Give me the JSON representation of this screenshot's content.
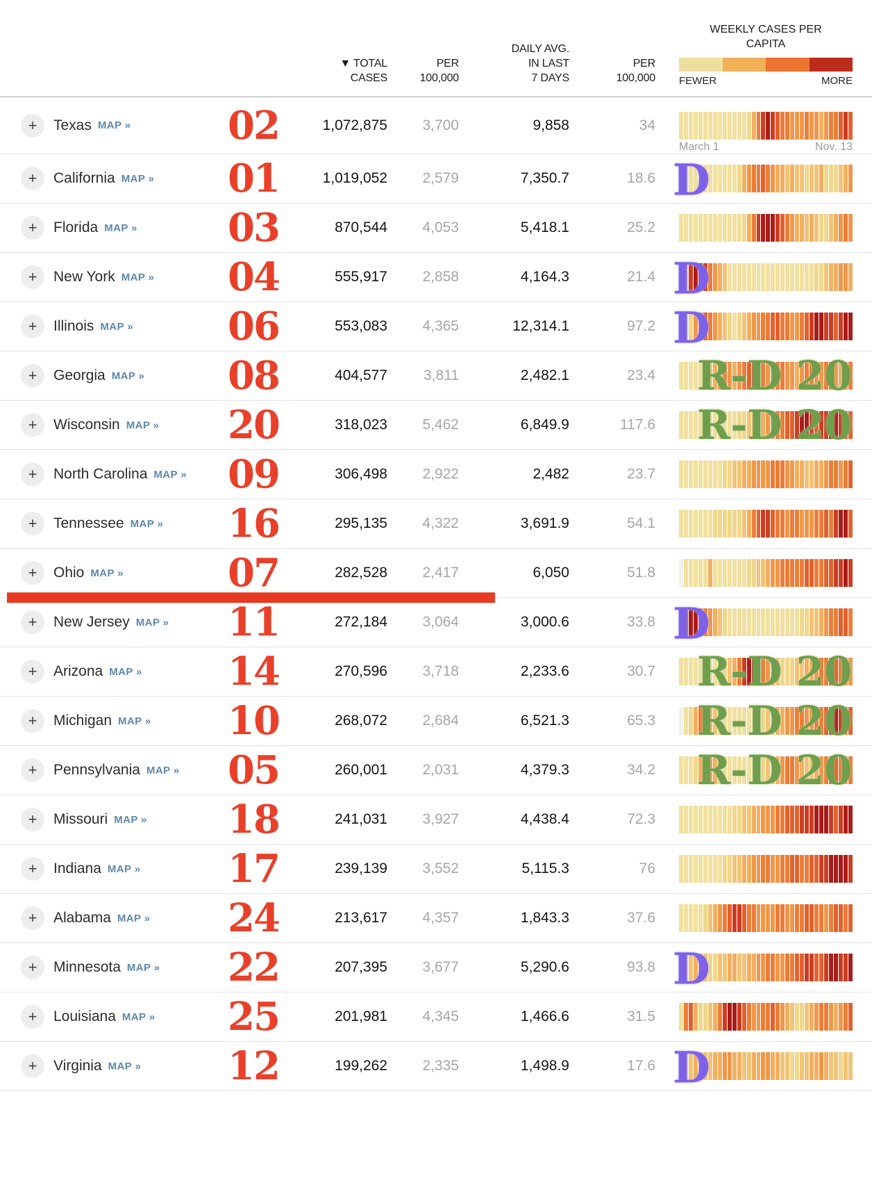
{
  "ui": {
    "plus": "+",
    "map_link": "MAP »",
    "columns": {
      "total": [
        "▼ TOTAL",
        "CASES"
      ],
      "per100k_1": [
        "PER",
        "100,000"
      ],
      "daily": [
        "DAILY AVG.",
        "IN LAST",
        "7 DAYS"
      ],
      "per100k_2": [
        "PER",
        "100,000"
      ]
    },
    "legend": {
      "title_line1": "WEEKLY CASES PER",
      "title_line2": "CAPITA",
      "fewer": "FEWER",
      "more": "MORE",
      "colors": [
        "#efdf9f",
        "#f2b159",
        "#ed7331",
        "#bc2b1c"
      ]
    },
    "timeline": {
      "start": "March 1",
      "end": "Nov. 13"
    }
  },
  "annotations": {
    "d_label": "D",
    "rd_label": "R-D 20",
    "colors": {
      "rank_red": "#e8402a",
      "underline_red": "#e73a22",
      "d_purple": "#7d62e8",
      "rd_green": "#6f9e4c"
    }
  },
  "palette": {
    "w": "#f2f0ea",
    "a": "#f1e0a0",
    "b": "#f0d78c",
    "c": "#f2c377",
    "d": "#f2af60",
    "e": "#ef974b",
    "f": "#ec7d38",
    "g": "#e2612d",
    "h": "#cb3d23",
    "i": "#a81c19"
  },
  "rows": [
    {
      "state": "Texas",
      "rank": "02",
      "total": "1,072,875",
      "per100k": "3,700",
      "daily_avg": "9,858",
      "daily_per100k": "34",
      "overlay": null,
      "strip": "aaaaaaaaaaaaaabdfhihgffeeefeedeffghg",
      "show_timeline_labels": true,
      "underline_after": false
    },
    {
      "state": "California",
      "rank": "01",
      "total": "1,019,052",
      "per100k": "2,579",
      "daily_avg": "7,350.7",
      "daily_per100k": "18.6",
      "overlay": "D",
      "strip": "aaaaaaaaaaaabdeffgfeddcdccbccdbbbcde",
      "show_timeline_labels": false,
      "underline_after": false
    },
    {
      "state": "Florida",
      "rank": "03",
      "total": "870,544",
      "per100k": "4,053",
      "daily_avg": "5,418.1",
      "daily_per100k": "25.2",
      "overlay": null,
      "strip": "aaaaaaaaaaaaabdfhiiihgfeddcdcbbcdefe",
      "show_timeline_labels": false,
      "underline_after": false
    },
    {
      "state": "New York",
      "rank": "04",
      "total": "555,917",
      "per100k": "2,858",
      "daily_avg": "4,164.3",
      "daily_per100k": "21.4",
      "overlay": "D",
      "strip": "aahiihfedcaaaaaaaaaaaaaaaaaabbcddeed",
      "show_timeline_labels": false,
      "underline_after": false
    },
    {
      "state": "Illinois",
      "rank": "06",
      "total": "553,083",
      "per100k": "4,365",
      "daily_avg": "12,314.1",
      "daily_per100k": "97.2",
      "overlay": "D",
      "strip": "aabefgfedcbabcdeeffggffeefghiihhghii",
      "show_timeline_labels": false,
      "underline_after": false
    },
    {
      "state": "Georgia",
      "rank": "08",
      "total": "404,577",
      "per100k": "3,811",
      "daily_avg": "2,482.1",
      "daily_per100k": "23.4",
      "overlay": "RD",
      "strip": "aaaaabcdefedefghgfeeffeedeffeeffedef",
      "show_timeline_labels": false,
      "underline_after": false
    },
    {
      "state": "Wisconsin",
      "rank": "20",
      "total": "318,023",
      "per100k": "5,462",
      "daily_avg": "6,849.9",
      "daily_per100k": "117.6",
      "overlay": "RD",
      "strip": "aaaaaaaaaaaabbccddeeffgghiihghhiihgg",
      "show_timeline_labels": false,
      "underline_after": false
    },
    {
      "state": "North Carolina",
      "rank": "09",
      "total": "306,498",
      "per100k": "2,922",
      "daily_avg": "2,482",
      "daily_per100k": "23.7",
      "overlay": null,
      "strip": "aaaaaaaaabbccddeeeefffeeddccddeffefg",
      "show_timeline_labels": false,
      "underline_after": false
    },
    {
      "state": "Tennessee",
      "rank": "16",
      "total": "295,135",
      "per100k": "4,322",
      "daily_avg": "3,691.9",
      "daily_per100k": "54.1",
      "overlay": null,
      "strip": "aaaaaaabbbbbbcdfghhgffeffeeeffgfhiig",
      "show_timeline_labels": false,
      "underline_after": false
    },
    {
      "state": "Ohio",
      "rank": "07",
      "total": "282,528",
      "per100k": "2,417",
      "daily_avg": "6,050",
      "daily_per100k": "51.8",
      "overlay": null,
      "strip": "waaaaadaaaaaaabbccdeefffffggffgghhih",
      "show_timeline_labels": false,
      "underline_after": true
    },
    {
      "state": "New Jersey",
      "rank": "11",
      "total": "272,184",
      "per100k": "3,064",
      "daily_avg": "3,000.6",
      "daily_per100k": "33.8",
      "overlay": "D",
      "strip": "ahiigfedcbaaaaaaaaaaaaaaabbccdeffggf",
      "show_timeline_labels": false,
      "underline_after": false
    },
    {
      "state": "Arizona",
      "rank": "14",
      "total": "270,596",
      "per100k": "3,718",
      "daily_avg": "2,233.6",
      "daily_per100k": "30.7",
      "overlay": "RD",
      "strip": "aaaaaaaabbcdfhiihfedcbbbccddeffggfee",
      "show_timeline_labels": false,
      "underline_after": false
    },
    {
      "state": "Michigan",
      "rank": "10",
      "total": "268,072",
      "per100k": "2,684",
      "daily_avg": "6,521.3",
      "daily_per100k": "65.3",
      "overlay": "RD",
      "strip": "wabdffdcbaaaaaaabbccddeeffeeffghihfg",
      "show_timeline_labels": false,
      "underline_after": false
    },
    {
      "state": "Pennsylvania",
      "rank": "05",
      "total": "260,001",
      "per100k": "2,031",
      "daily_avg": "4,379.3",
      "daily_per100k": "34.2",
      "overlay": "RD",
      "strip": "aaabdfedbaaaaaaabbccdeffedccdefggfef",
      "show_timeline_labels": false,
      "underline_after": false
    },
    {
      "state": "Missouri",
      "rank": "18",
      "total": "241,031",
      "per100k": "3,927",
      "daily_avg": "4,438.4",
      "daily_per100k": "72.3",
      "overlay": null,
      "strip": "aaaaaaaaaaabbccddeeeffggghhhiiihghii",
      "show_timeline_labels": false,
      "underline_after": false
    },
    {
      "state": "Indiana",
      "rank": "17",
      "total": "239,139",
      "per100k": "3,552",
      "daily_avg": "5,115.3",
      "daily_per100k": "76",
      "overlay": null,
      "strip": "aaaaaaaaabbccddeeffeeffggffgghhiiiih",
      "show_timeline_labels": false,
      "underline_after": false
    },
    {
      "state": "Alabama",
      "rank": "24",
      "total": "213,617",
      "per100k": "4,357",
      "daily_avg": "1,843.3",
      "daily_per100k": "37.6",
      "overlay": null,
      "strip": "aaaaabcdefghhgffeeeeffeeffggffefggfg",
      "show_timeline_labels": false,
      "underline_after": false
    },
    {
      "state": "Minnesota",
      "rank": "22",
      "total": "207,395",
      "per100k": "3,677",
      "daily_avg": "5,290.6",
      "daily_per100k": "93.8",
      "overlay": "D",
      "strip": "abcddcbbccddccddeeffeeffgghhgghiihhi",
      "show_timeline_labels": false,
      "underline_after": false
    },
    {
      "state": "Louisiana",
      "rank": "25",
      "total": "201,981",
      "per100k": "4,345",
      "daily_avg": "1,466.6",
      "daily_per100k": "31.5",
      "overlay": null,
      "strip": "afgdbbcdfhiihgfeeffgfedcbbcdeffedefg",
      "show_timeline_labels": false,
      "underline_after": false
    },
    {
      "state": "Virginia",
      "rank": "12",
      "total": "199,262",
      "per100k": "2,335",
      "daily_avg": "1,498.9",
      "daily_per100k": "17.6",
      "overlay": "D",
      "strip": "abcddccddeeddccddeeddccbbccddedccbcc",
      "show_timeline_labels": false,
      "underline_after": false
    }
  ]
}
